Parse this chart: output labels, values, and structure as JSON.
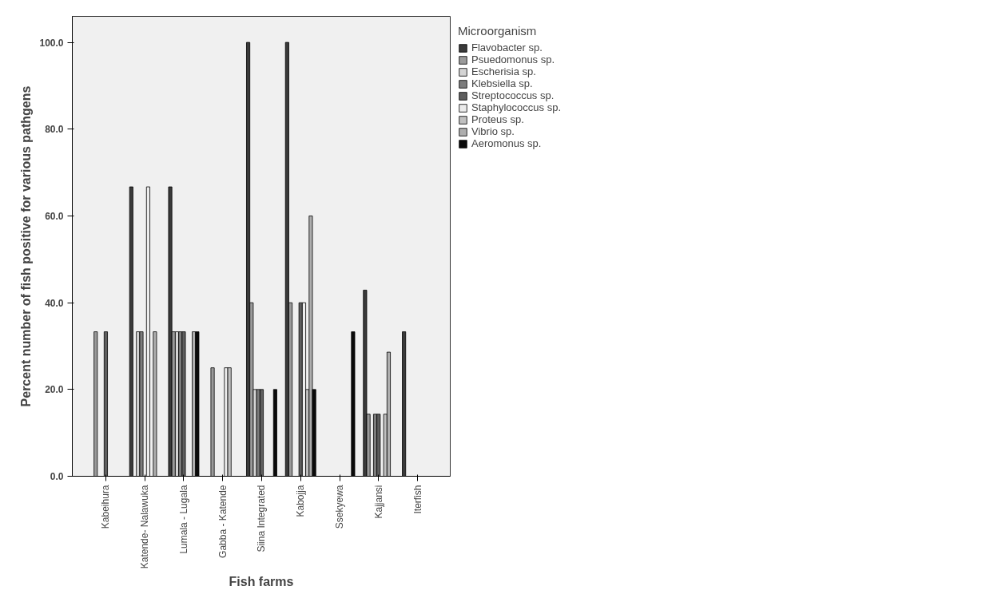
{
  "chart_data": {
    "type": "bar",
    "xlabel": "Fish farms",
    "ylabel": "Percent number of fish positive for various pathgens",
    "legend_title": "Microorganism",
    "legend": "top right",
    "grid": false,
    "categories": [
      "Kabeihura",
      "Katende- Nalawuka",
      "Lumala - Lugala",
      "Gabba - Katende",
      "Siina Integrated",
      "Kabojja",
      "Ssekyewa",
      "Kajjansi",
      "Iterfish"
    ],
    "ylim": [
      0,
      106
    ],
    "yticks": [
      {
        "value": 0,
        "label": "0.0"
      },
      {
        "value": 20,
        "label": "20.0"
      },
      {
        "value": 40,
        "label": "40.0"
      },
      {
        "value": 60,
        "label": "60.0"
      },
      {
        "value": 80,
        "label": "80.0"
      },
      {
        "value": 100,
        "label": "100.0"
      }
    ],
    "series": [
      {
        "name": "Flavobacter sp.",
        "color": "#3a3a3a",
        "values": [
          null,
          66.7,
          66.7,
          null,
          100,
          100,
          null,
          42.9,
          33.3
        ]
      },
      {
        "name": "Psuedomonus sp.",
        "color": "#9a9a9a",
        "values": [
          33.3,
          null,
          33.3,
          25,
          40,
          40,
          null,
          14.3,
          null
        ]
      },
      {
        "name": "Escherisia sp.",
        "color": "#d4d4d4",
        "values": [
          null,
          33.3,
          33.3,
          null,
          20,
          null,
          null,
          null,
          null
        ]
      },
      {
        "name": "Klebsiella sp.",
        "color": "#7c7c7c",
        "values": [
          null,
          33.3,
          33.3,
          null,
          20,
          null,
          null,
          14.3,
          null
        ]
      },
      {
        "name": "Streptococcus sp.",
        "color": "#5e5e5e",
        "values": [
          33.3,
          null,
          33.3,
          null,
          20,
          40,
          null,
          14.3,
          null
        ]
      },
      {
        "name": "Staphylococcus sp.",
        "color": "#ececec",
        "values": [
          null,
          66.7,
          null,
          25,
          null,
          40,
          null,
          null,
          null
        ]
      },
      {
        "name": "Proteus sp.",
        "color": "#c0c0c0",
        "values": [
          null,
          null,
          null,
          25,
          null,
          20,
          null,
          14.3,
          null
        ]
      },
      {
        "name": "Vibrio sp.",
        "color": "#aeaeae",
        "values": [
          null,
          33.3,
          33.3,
          null,
          null,
          60,
          null,
          28.6,
          null
        ]
      },
      {
        "name": "Aeromonus sp.",
        "color": "#0a0a0a",
        "values": [
          null,
          null,
          33.3,
          null,
          20,
          20,
          33.3,
          null,
          null
        ]
      }
    ]
  }
}
